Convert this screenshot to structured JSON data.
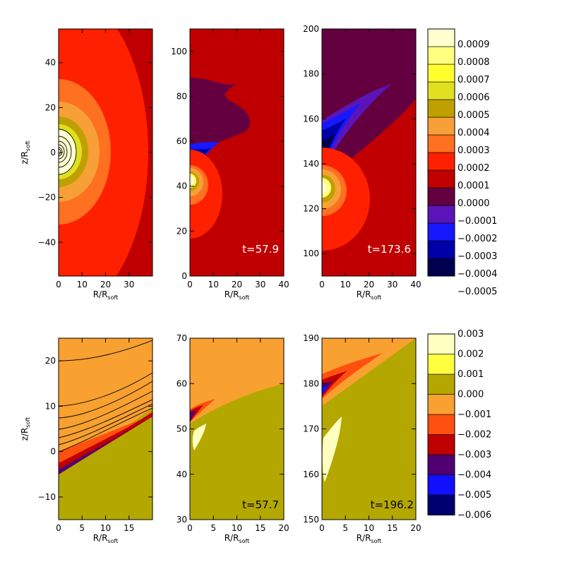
{
  "colors": {
    "row1_levels": [
      "#000050",
      "#0000a8",
      "#1818ff",
      "#5a14b8",
      "#640040",
      "#c00000",
      "#ff2000",
      "#ff7020",
      "#f8a038",
      "#c0a000",
      "#e0e020",
      "#ffff30",
      "#ffff80",
      "#ffffd0"
    ],
    "row2_levels": [
      "#000070",
      "#1010ff",
      "#500070",
      "#c00000",
      "#ff5010",
      "#f8a030",
      "#b4a800",
      "#ffff40",
      "#ffffc0"
    ]
  },
  "chart_data": [
    {
      "type": "heatmap",
      "panel": "row1-left",
      "xlabel": "R/R",
      "xlabel_sub": "soft",
      "ylabel": "z/R",
      "ylabel_sub": "soft",
      "xlim": [
        0,
        40
      ],
      "ylim": [
        -55,
        55
      ],
      "xticks": [
        "0",
        "10",
        "20",
        "30"
      ],
      "yticks": [
        "−40",
        "−20",
        "0",
        "20",
        "40"
      ],
      "annotation": ""
    },
    {
      "type": "heatmap",
      "panel": "row1-middle",
      "xlabel": "R/R",
      "xlabel_sub": "soft",
      "xlim": [
        0,
        40
      ],
      "ylim": [
        0,
        110
      ],
      "xticks": [
        "0",
        "10",
        "20",
        "30",
        "40"
      ],
      "yticks": [
        "0",
        "20",
        "40",
        "60",
        "80",
        "100"
      ],
      "annotation": "t=57.9"
    },
    {
      "type": "heatmap",
      "panel": "row1-right",
      "xlabel": "R/R",
      "xlabel_sub": "soft",
      "xlim": [
        0,
        40
      ],
      "ylim": [
        90,
        200
      ],
      "xticks": [
        "0",
        "10",
        "20",
        "30",
        "40"
      ],
      "yticks": [
        "100",
        "120",
        "140",
        "160",
        "180",
        "200"
      ],
      "annotation": "t=173.6"
    },
    {
      "type": "heatmap",
      "panel": "row1-colorbar",
      "levels": [
        "0.0009",
        "0.0008",
        "0.0007",
        "0.0006",
        "0.0005",
        "0.0004",
        "0.0003",
        "0.0002",
        "0.0001",
        "0.0000",
        "−0.0001",
        "−0.0002",
        "−0.0003",
        "−0.0004",
        "−0.0005"
      ]
    },
    {
      "type": "heatmap",
      "panel": "row2-left",
      "xlabel": "R/R",
      "xlabel_sub": "soft",
      "ylabel": "z/R",
      "ylabel_sub": "soft",
      "xlim": [
        0,
        20
      ],
      "ylim": [
        -15,
        25
      ],
      "xticks": [
        "0",
        "5",
        "10",
        "15"
      ],
      "yticks": [
        "−10",
        "0",
        "10",
        "20"
      ],
      "annotation": ""
    },
    {
      "type": "heatmap",
      "panel": "row2-middle",
      "xlabel": "R/R",
      "xlabel_sub": "soft",
      "xlim": [
        0,
        20
      ],
      "ylim": [
        30,
        70
      ],
      "xticks": [
        "0",
        "5",
        "10",
        "15",
        "20"
      ],
      "yticks": [
        "30",
        "40",
        "50",
        "60",
        "70"
      ],
      "annotation": "t=57.7"
    },
    {
      "type": "heatmap",
      "panel": "row2-right",
      "xlabel": "R/R",
      "xlabel_sub": "soft",
      "xlim": [
        0,
        20
      ],
      "ylim": [
        150,
        190
      ],
      "xticks": [
        "0",
        "5",
        "10",
        "15",
        "20"
      ],
      "yticks": [
        "150",
        "160",
        "170",
        "180",
        "190"
      ],
      "annotation": "t=196.2"
    },
    {
      "type": "heatmap",
      "panel": "row2-colorbar",
      "levels": [
        "0.003",
        "0.002",
        "0.001",
        "0.000",
        "−0.001",
        "−0.002",
        "−0.003",
        "−0.004",
        "−0.005",
        "−0.006"
      ]
    }
  ]
}
